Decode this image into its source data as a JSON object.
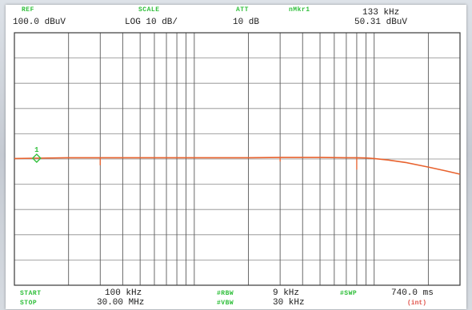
{
  "header": {
    "ref_title": "REF",
    "ref_value": "100.0 dBuV",
    "scale_title": "SCALE",
    "scale_value": "LOG 10 dB/",
    "att_title": "ATT",
    "att_value": "10 dB",
    "marker_title": "nMkr1",
    "marker_freq": "133 kHz",
    "marker_level": "50.31 dBuV"
  },
  "footer": {
    "start_title": "START",
    "start_value": "100 kHz",
    "stop_title": "STOP",
    "stop_value": "30.00 MHz",
    "rbw_title": "#RBW",
    "rbw_value": "9 kHz",
    "vbw_title": "#VBW",
    "vbw_value": "30 kHz",
    "swp_title": "#SWP",
    "swp_value": "740.0 ms",
    "swp_mode": "(int)"
  },
  "chart_data": {
    "type": "line",
    "title": "",
    "xlabel": "",
    "ylabel": "",
    "x_scale": "log",
    "x_unit": "MHz",
    "xlim": [
      0.1,
      30
    ],
    "y_unit": "dBuV",
    "ylim": [
      0,
      100
    ],
    "y_divisions": 10,
    "grid": true,
    "vertical_gridlines_mhz": [
      0.2,
      0.3,
      0.4,
      0.5,
      0.6,
      0.7,
      0.8,
      0.9,
      1,
      2,
      3,
      4,
      5,
      6,
      7,
      8,
      9,
      10,
      20
    ],
    "series": [
      {
        "color": "#e8622e",
        "x": [
          0.1,
          0.13,
          0.2,
          0.3,
          0.5,
          1,
          2,
          3,
          5,
          7,
          8,
          9,
          10,
          12,
          15,
          20,
          25,
          30
        ],
        "y": [
          50.2,
          50.31,
          50.5,
          50.5,
          50.5,
          50.5,
          50.5,
          50.6,
          50.6,
          50.5,
          50.5,
          50.4,
          50.2,
          49.6,
          48.6,
          46.8,
          45.3,
          44.0
        ],
        "dips": [
          {
            "x": 0.3,
            "y": 47.5
          },
          {
            "x": 3.0,
            "y": 49.0
          },
          {
            "x": 8.0,
            "y": 45.8
          }
        ]
      }
    ],
    "markers": [
      {
        "label": "1",
        "x": 0.133,
        "y": 50.31,
        "color": "#2fbf3a"
      }
    ]
  }
}
